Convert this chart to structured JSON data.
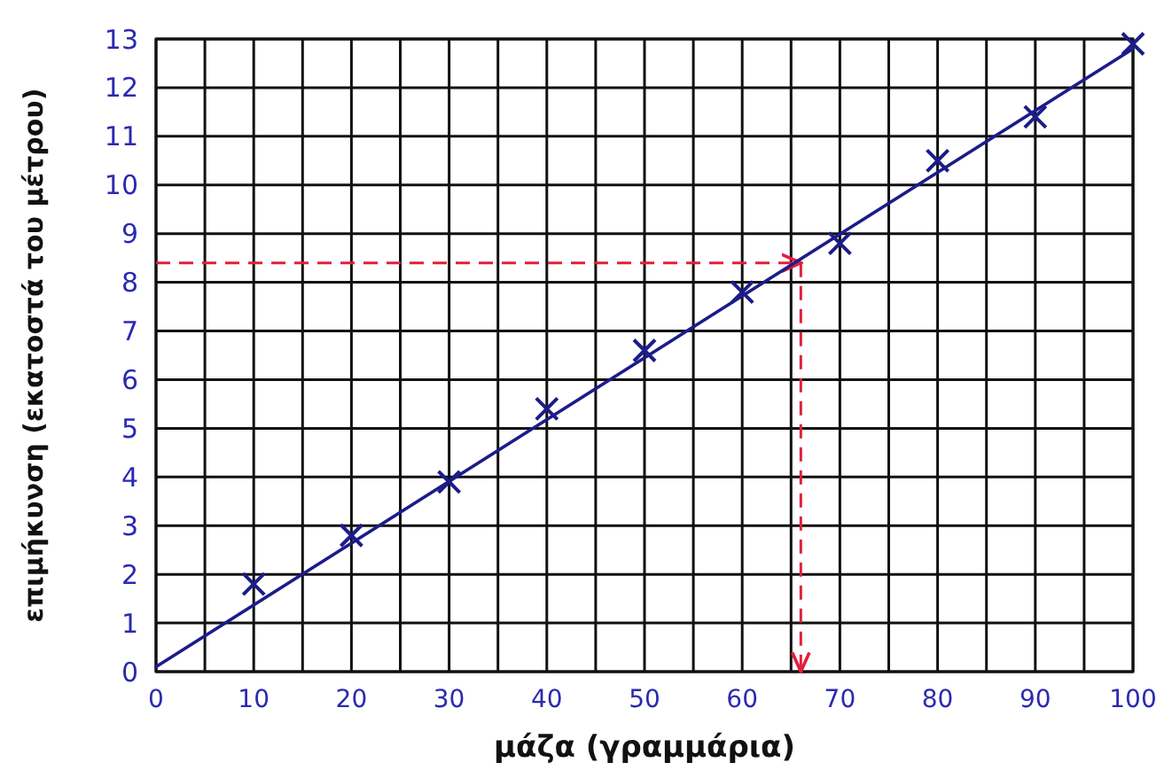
{
  "chart_data": {
    "type": "scatter",
    "xlabel": "μάζα (γραμμάρια)",
    "ylabel": "επιμήκυνση (εκατοστά του μέτρου)",
    "x": [
      10,
      20,
      30,
      40,
      50,
      60,
      70,
      80,
      90,
      100
    ],
    "series": [
      {
        "color": "#1c1c8a",
        "marker": "cross",
        "values": [
          1.8,
          2.8,
          3.9,
          5.4,
          6.6,
          7.8,
          8.8,
          10.5,
          11.4,
          12.9
        ]
      },
      {
        "type": "line",
        "color": "#1c1c8a",
        "x": [
          0,
          100
        ],
        "values": [
          0.1,
          12.8
        ],
        "line_style": "solid"
      }
    ],
    "xlim": [
      0,
      100
    ],
    "ylim": [
      0,
      13
    ],
    "xticks": [
      0,
      {
        "value": 5,
        "label": null
      },
      10,
      {
        "value": 15,
        "label": null
      },
      20,
      {
        "value": 25,
        "label": null
      },
      30,
      {
        "value": 35,
        "label": null
      },
      40,
      {
        "value": 45,
        "label": null
      },
      50,
      {
        "value": 55,
        "label": null
      },
      60,
      {
        "value": 65,
        "label": null
      },
      70,
      {
        "value": 75,
        "label": null
      },
      80,
      {
        "value": 85,
        "label": null
      },
      90,
      {
        "value": 95,
        "label": null
      },
      100
    ],
    "yticks": [
      0,
      1,
      2,
      3,
      4,
      5,
      6,
      7,
      8,
      9,
      10,
      11,
      12,
      13
    ],
    "grid": true,
    "ref_lines": [
      {
        "axis": "y",
        "value": 8.4,
        "color": "#e0203a",
        "line_style": "dashed"
      },
      {
        "axis": "x",
        "value": 66,
        "color": "#e0203a",
        "line_style": "dashed"
      }
    ]
  }
}
